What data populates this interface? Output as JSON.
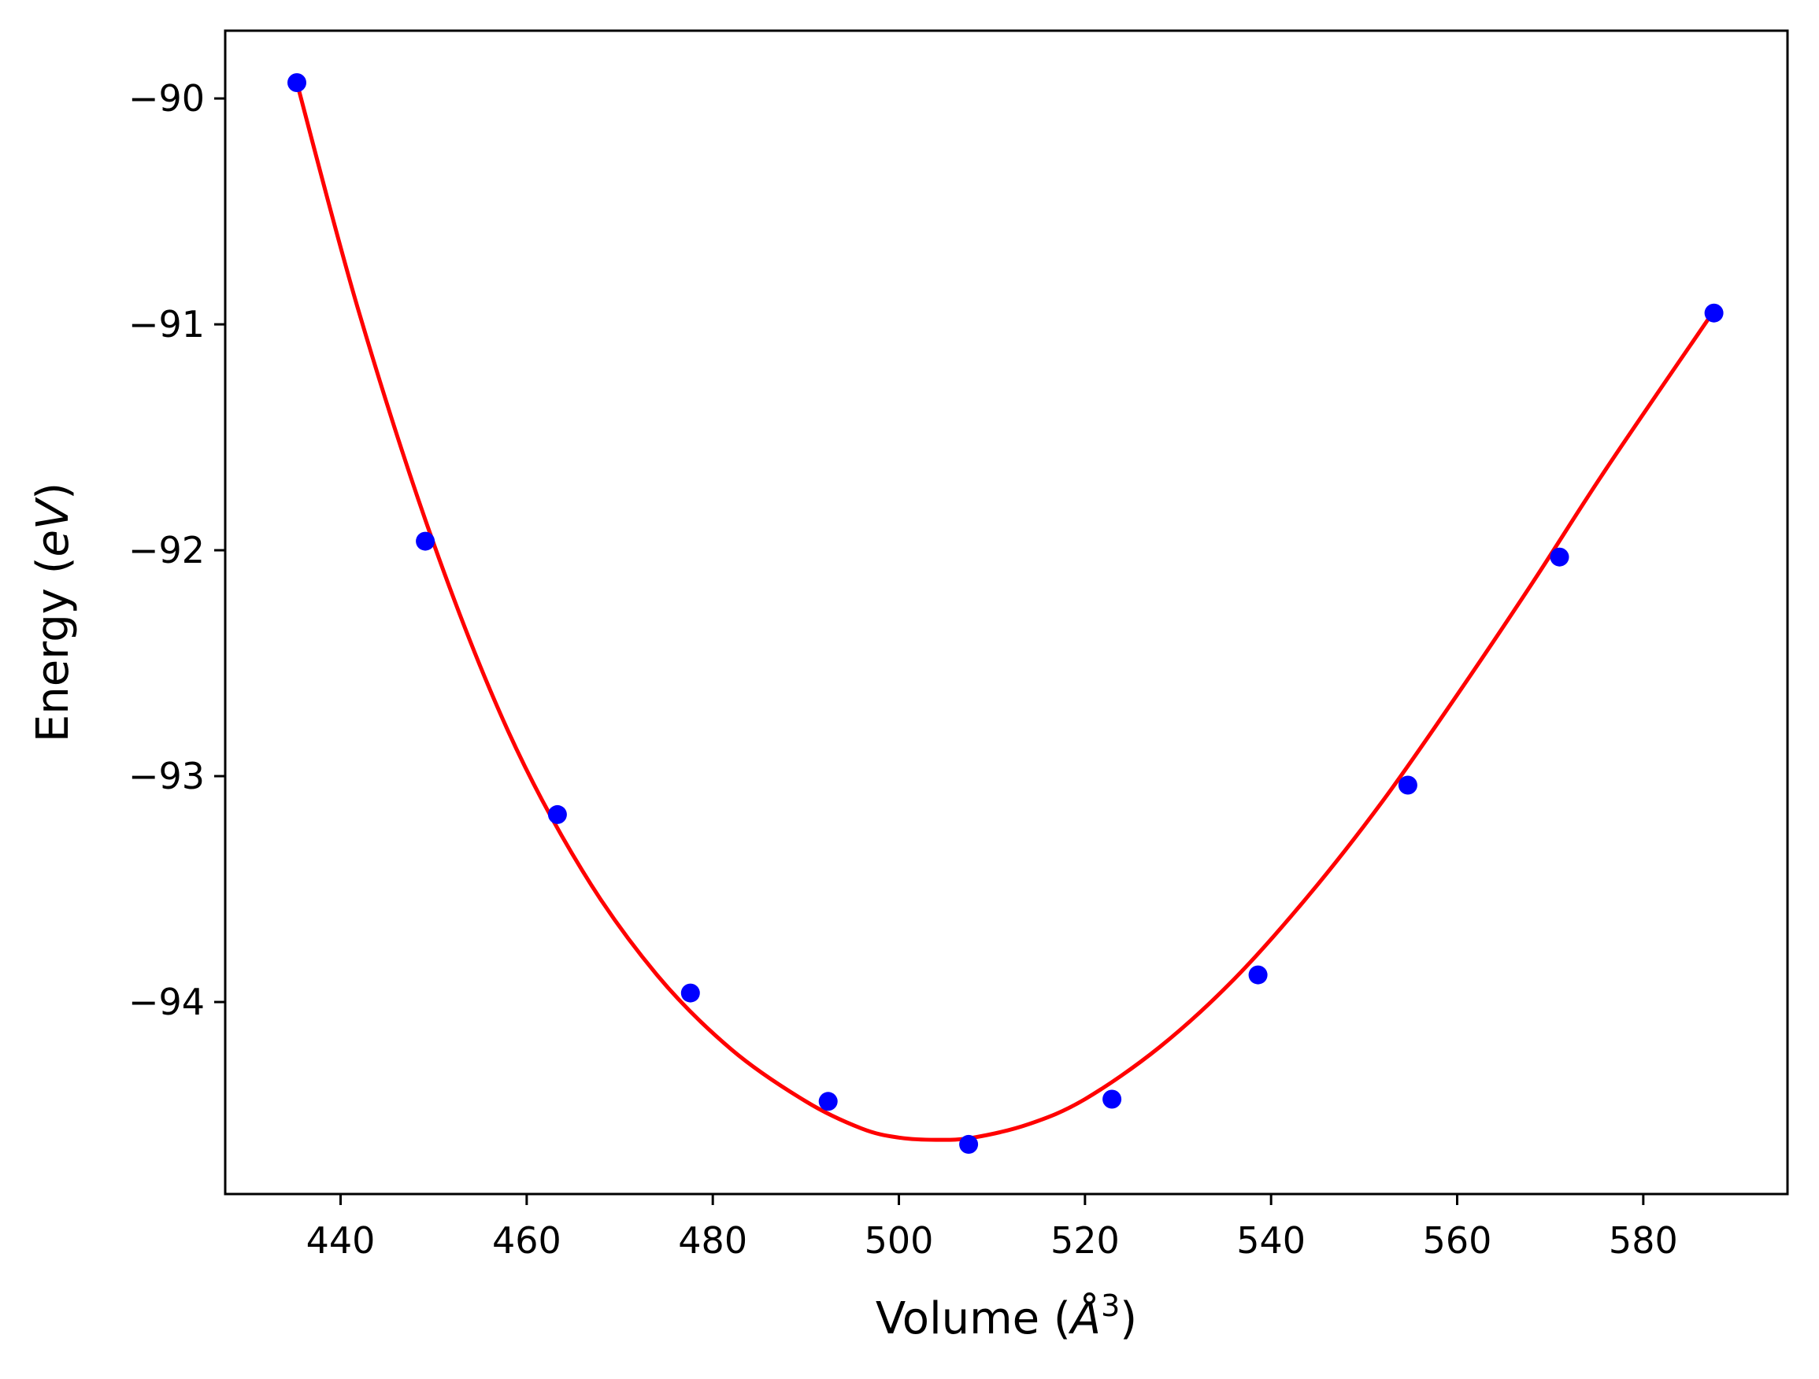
{
  "chart_data": {
    "type": "scatter",
    "title": "",
    "xlabel_text": "Volume (",
    "xlabel_symbol": "Å",
    "xlabel_sup": "3",
    "xlabel_close": ")",
    "ylabel_text": "Energy (",
    "ylabel_symbol": "eV",
    "ylabel_close": ")",
    "xlim": [
      427.6,
      595.5
    ],
    "ylim": [
      -94.85,
      -89.7
    ],
    "xticks": [
      440,
      460,
      480,
      500,
      520,
      540,
      560,
      580
    ],
    "xtick_labels": [
      "440",
      "460",
      "480",
      "500",
      "520",
      "540",
      "560",
      "580"
    ],
    "yticks": [
      -90,
      -91,
      -92,
      -93,
      -94
    ],
    "ytick_labels": [
      "−90",
      "−91",
      "−92",
      "−93",
      "−94"
    ],
    "grid": false,
    "series": [
      {
        "kind": "points",
        "color": "#0000ff",
        "x": [
          435.3,
          449.1,
          463.3,
          477.6,
          492.4,
          507.5,
          522.9,
          538.6,
          554.7,
          571.0,
          587.6
        ],
        "y": [
          -89.93,
          -91.96,
          -93.17,
          -93.96,
          -94.44,
          -94.63,
          -94.43,
          -93.88,
          -93.04,
          -92.03,
          -90.95
        ]
      },
      {
        "kind": "fit-curve",
        "color": "#ff0000",
        "x": [
          435.3,
          442.0,
          450.0,
          458.0,
          466.0,
          474.0,
          482.0,
          490.0,
          496.0,
          500.0,
          504.0,
          508.0,
          514.0,
          520.0,
          528.0,
          536.0,
          544.0,
          552.0,
          560.0,
          568.0,
          576.0,
          587.6
        ],
        "y": [
          -89.93,
          -90.95,
          -91.97,
          -92.8,
          -93.42,
          -93.88,
          -94.21,
          -94.44,
          -94.56,
          -94.6,
          -94.61,
          -94.6,
          -94.54,
          -94.43,
          -94.2,
          -93.9,
          -93.53,
          -93.11,
          -92.64,
          -92.15,
          -91.64,
          -90.94
        ]
      }
    ]
  }
}
